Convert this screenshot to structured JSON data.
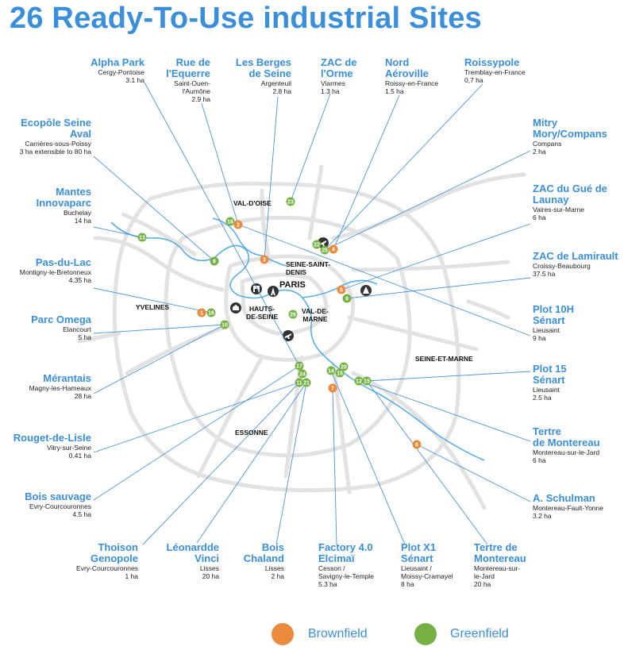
{
  "title": "26 Ready-To-Use industrial Sites",
  "colors": {
    "accent": "#3a8fdb",
    "brownfield": "#ea8a3c",
    "greenfield": "#75b043",
    "road": "#e2e2e2",
    "water": "#5aaee6",
    "leader": "#4a94d6"
  },
  "map": {
    "departments": [
      {
        "label": "VAL-D'OISE"
      },
      {
        "label": "SEINE-SAINT-\nDENIS"
      },
      {
        "label": "PARIS"
      },
      {
        "label": "YVELINES"
      },
      {
        "label": "HAUTS-\nDE-SEINE"
      },
      {
        "label": "VAL-DE-\nMARNE"
      },
      {
        "label": "SEINE-ET-MARNE"
      },
      {
        "label": "ESSONNE"
      }
    ],
    "landmarks": [
      {
        "icon": "airport-icon"
      },
      {
        "icon": "airport-icon"
      },
      {
        "icon": "eiffel-tower-icon"
      },
      {
        "icon": "arc-de-triomphe-icon"
      },
      {
        "icon": "palace-icon"
      },
      {
        "icon": "theme-park-icon"
      }
    ]
  },
  "sites": [
    {
      "name": "Alpha Park",
      "location": "Cergy-Pontoise",
      "area": "3.1 ha"
    },
    {
      "name": "Rue de\nl'Equerre",
      "location": "Saint-Ouen-\nl'Aumône",
      "area": "2.9 ha"
    },
    {
      "name": "Les Berges\nde Seine",
      "location": "Argenteuil",
      "area": "2.8 ha"
    },
    {
      "name": "ZAC de\nl'Orme",
      "location": "Viarmes",
      "area": "1.3 ha"
    },
    {
      "name": "Nord\nAéroville",
      "location": "Roissy-en-France",
      "area": "1.5 ha"
    },
    {
      "name": "Roissypole",
      "location": "Tremblay-en-France",
      "area": "0,7 ha"
    },
    {
      "name": "Ecopôle Seine\nAval",
      "location": "Carrières-sous-Poissy\n3 ha extensible to 80 ha",
      "area": ""
    },
    {
      "name": "Mitry\nMory/Compans",
      "location": "Compans",
      "area": "2 ha"
    },
    {
      "name": "Mantes\nInnovaparc",
      "location": "Buchelay",
      "area": "14 ha"
    },
    {
      "name": "ZAC du Gué de\nLaunay",
      "location": "Vaires-sur-Marne",
      "area": "6 ha"
    },
    {
      "name": "Pas-du-Lac",
      "location": "Montigny-le-Bretonneux",
      "area": "4.35 ha"
    },
    {
      "name": "ZAC de Lamirault",
      "location": "Croissy-Beaubourg",
      "area": "37.5 ha"
    },
    {
      "name": "Parc Omega",
      "location": "Elancourt",
      "area": "5 ha"
    },
    {
      "name": "Plot 10H\nSénart",
      "location": "Lieusaint",
      "area": "9 ha"
    },
    {
      "name": "Mérantais",
      "location": "Magny-les-Hameaux",
      "area": "28 ha"
    },
    {
      "name": "Plot 15\nSénart",
      "location": "Lieusaint",
      "area": "2.5 ha"
    },
    {
      "name": "Rouget-de-Lisle",
      "location": "Vitry-sur-Seine",
      "area": "0.41 ha"
    },
    {
      "name": "Tertre\nde Montereau",
      "location": "Montereau-sur-le-Jard",
      "area": "6 ha"
    },
    {
      "name": "Bois sauvage",
      "location": "Evry-Courcouronnes",
      "area": "4.5 ha"
    },
    {
      "name": "A. Schulman",
      "location": "Montereau-Fault-Yonne",
      "area": "3.2 ha"
    },
    {
      "name": "Thoison\nGenopole",
      "location": "Evry-Courcouronnes",
      "area": "1 ha"
    },
    {
      "name": "Léonardde\nVinci",
      "location": "Lisses",
      "area": "20 ha"
    },
    {
      "name": "Bois\nChaland",
      "location": "Lisses",
      "area": "2 ha"
    },
    {
      "name": "Factory 4.0\nElcimaï",
      "location": "Cesson /\nSavigny-le-Temple",
      "area": "5.3 ha"
    },
    {
      "name": "Plot X1\nSénart",
      "location": "Lieusaint /\nMoissy-Cramayel",
      "area": "8 ha"
    },
    {
      "name": "Tertre de\nMontereau",
      "location": "Montereau-sur-\nle-Jard",
      "area": "20 ha"
    }
  ],
  "markers": [
    {
      "label": "1",
      "type": "brownfield"
    },
    {
      "label": "2",
      "type": "brownfield"
    },
    {
      "label": "3",
      "type": "brownfield"
    },
    {
      "label": "4",
      "type": "brownfield"
    },
    {
      "label": "5",
      "type": "brownfield"
    },
    {
      "label": "6",
      "type": "brownfield"
    },
    {
      "label": "7",
      "type": "brownfield"
    },
    {
      "label": "8",
      "type": "greenfield"
    },
    {
      "label": "9",
      "type": "greenfield"
    },
    {
      "label": "10",
      "type": "greenfield"
    },
    {
      "label": "11",
      "type": "greenfield"
    },
    {
      "label": "12",
      "type": "greenfield"
    },
    {
      "label": "13",
      "type": "greenfield"
    },
    {
      "label": "14",
      "type": "greenfield"
    },
    {
      "label": "15",
      "type": "greenfield"
    },
    {
      "label": "15",
      "type": "greenfield"
    },
    {
      "label": "16",
      "type": "greenfield"
    },
    {
      "label": "17",
      "type": "greenfield"
    },
    {
      "label": "18",
      "type": "greenfield"
    },
    {
      "label": "20",
      "type": "greenfield"
    },
    {
      "label": "21",
      "type": "greenfield"
    },
    {
      "label": "22",
      "type": "greenfield"
    },
    {
      "label": "23",
      "type": "greenfield"
    },
    {
      "label": "24",
      "type": "greenfield"
    },
    {
      "label": "25",
      "type": "greenfield"
    },
    {
      "label": "26",
      "type": "greenfield"
    }
  ],
  "legend": [
    {
      "label": "Brownfield",
      "type": "brownfield"
    },
    {
      "label": "Greenfield",
      "type": "greenfield"
    }
  ]
}
